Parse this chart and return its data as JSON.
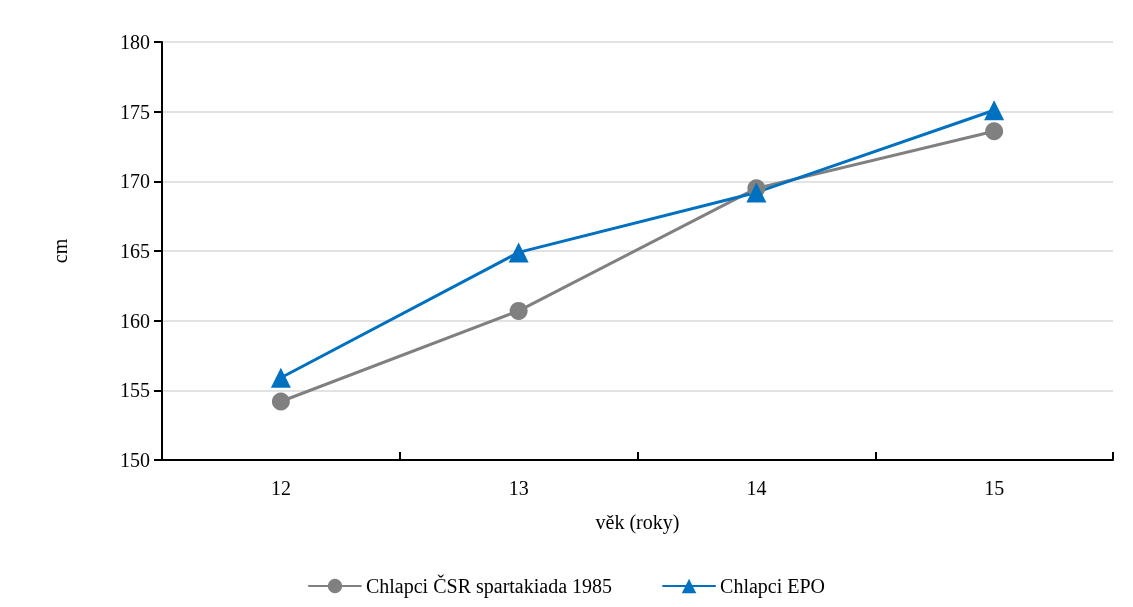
{
  "chart_data": {
    "type": "line",
    "xlabel": "věk (roky)",
    "ylabel": "cm",
    "categories": [
      "12",
      "13",
      "14",
      "15"
    ],
    "series": [
      {
        "name": "Chlapci ČSR spartakiada 1985",
        "color": "#808080",
        "marker": "circle",
        "values": [
          154.2,
          160.7,
          169.5,
          173.6
        ]
      },
      {
        "name": "Chlapci EPO",
        "color": "#0070c0",
        "marker": "triangle",
        "values": [
          155.9,
          164.9,
          169.2,
          175.1
        ]
      }
    ],
    "ylim": [
      150,
      180
    ],
    "yticks": [
      150,
      155,
      160,
      165,
      170,
      175,
      180
    ],
    "grid": "y",
    "legend": "bottom",
    "line_style": "solid"
  }
}
